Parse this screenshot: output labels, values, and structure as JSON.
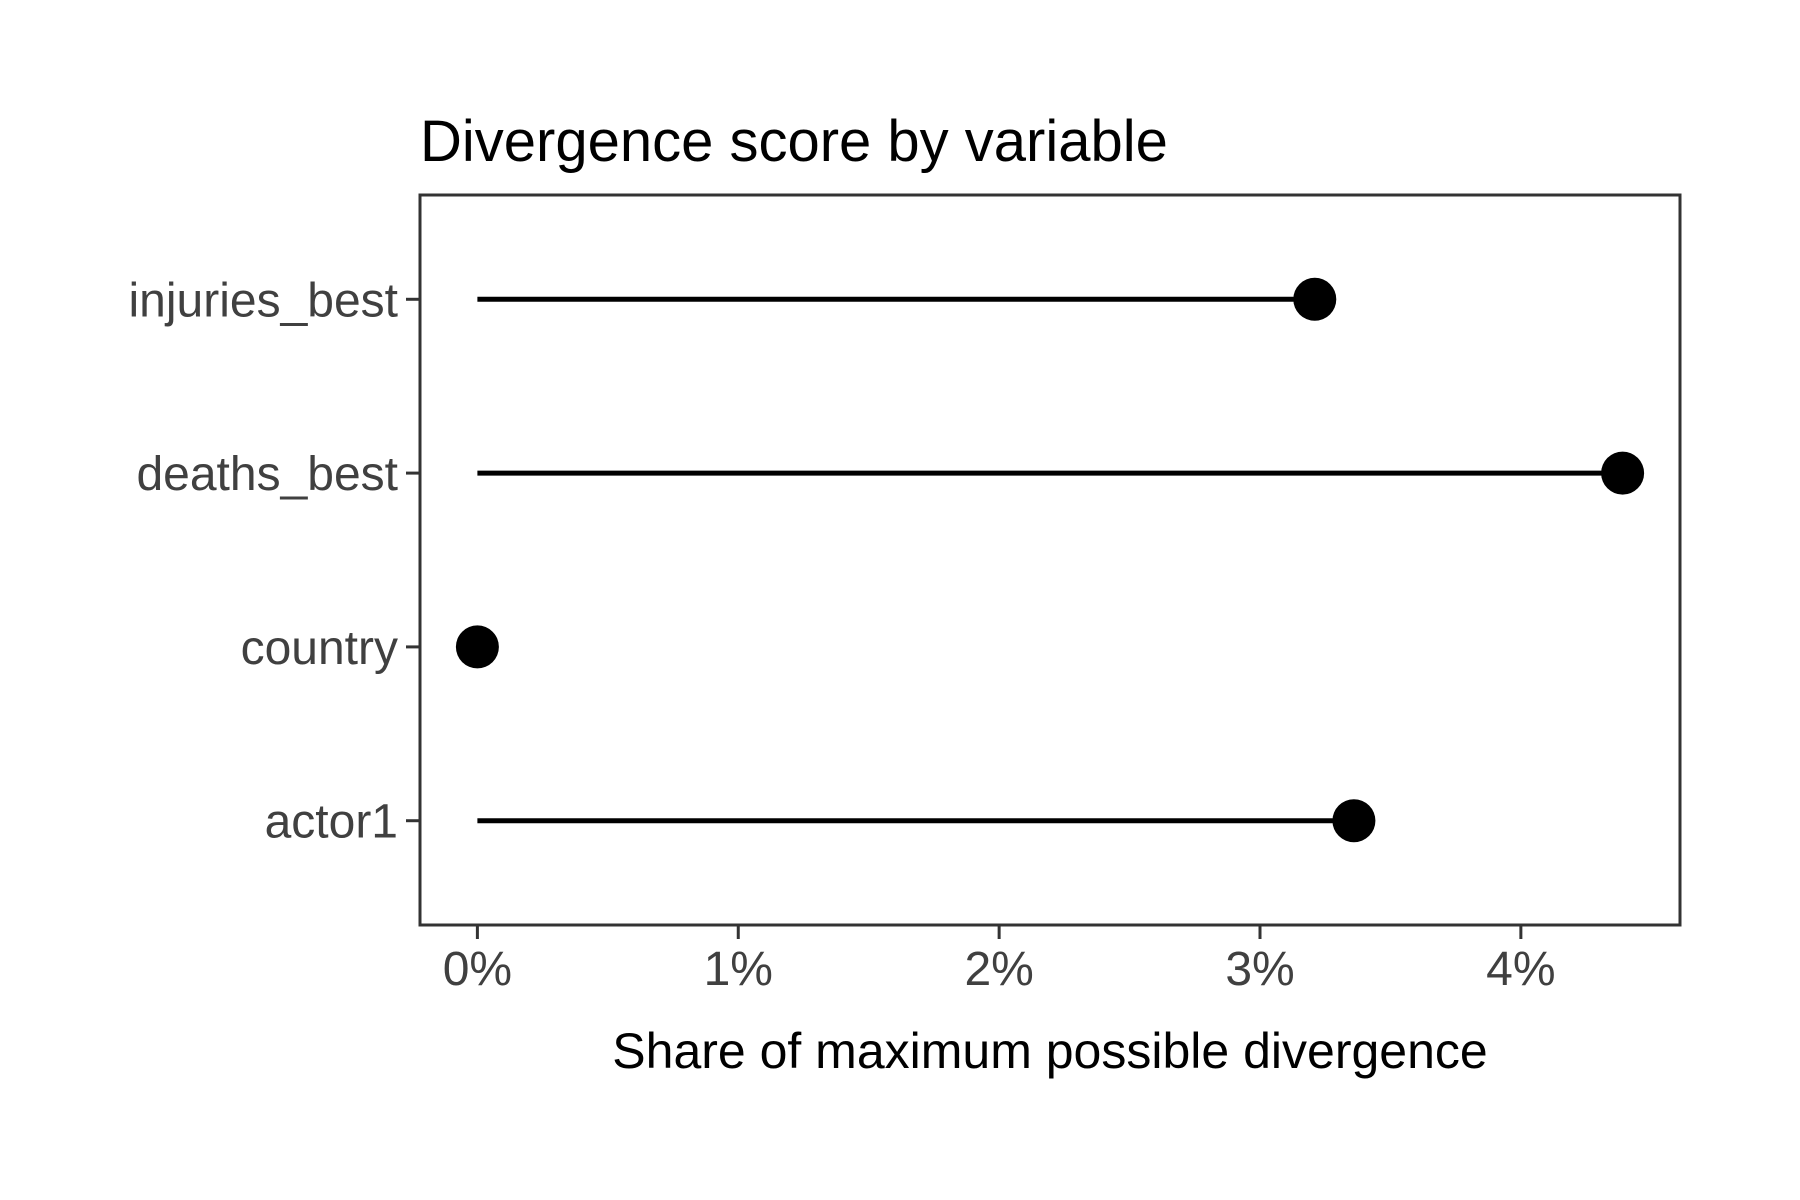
{
  "colors": {
    "marks": "#000000",
    "axis_text": "#404040",
    "axis_line": "#333333",
    "title_text": "#000000",
    "background": "#ffffff"
  },
  "chart_data": {
    "type": "lollipop",
    "orientation": "horizontal",
    "title": "Divergence score by variable",
    "xlabel": "Share of maximum possible divergence",
    "ylabel": "",
    "categories_top_to_bottom": [
      "injuries_best",
      "deaths_best",
      "country",
      "actor1"
    ],
    "values_pct": [
      3.21,
      4.39,
      0.0,
      3.36
    ],
    "stem_start_pct": 0,
    "x_ticks_pct": [
      0,
      1,
      2,
      3,
      4
    ],
    "x_tick_labels": [
      "0%",
      "1%",
      "2%",
      "3%",
      "4%"
    ],
    "xlim_pct": [
      -0.22,
      4.61
    ],
    "grid": "none",
    "legend": "none"
  }
}
